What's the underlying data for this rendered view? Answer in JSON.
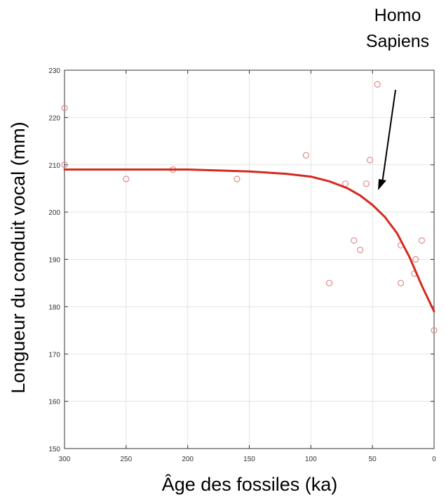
{
  "chart_data": {
    "type": "scatter",
    "xlabel": "Âge des fossiles (ka)",
    "ylabel": "Longueur du conduit vocal (mm)",
    "xlim": [
      300,
      0
    ],
    "ylim": [
      150,
      230
    ],
    "x_reversed": true,
    "grid": true,
    "xticks": [
      300,
      250,
      200,
      150,
      100,
      50,
      0
    ],
    "xtick_labels": [
      "300",
      "250",
      "200",
      "150",
      "100",
      "50",
      "0"
    ],
    "yticks": [
      150,
      160,
      170,
      180,
      190,
      200,
      210,
      220,
      230
    ],
    "ytick_labels": [
      "150",
      "160",
      "170",
      "180",
      "190",
      "200",
      "210",
      "220",
      "230"
    ],
    "series": [
      {
        "kind": "scatter",
        "marker": "circle-open",
        "color": "#e08a8a",
        "points": [
          {
            "x": 300,
            "y": 222
          },
          {
            "x": 300,
            "y": 210
          },
          {
            "x": 250,
            "y": 207
          },
          {
            "x": 212,
            "y": 209
          },
          {
            "x": 160,
            "y": 207
          },
          {
            "x": 104,
            "y": 212
          },
          {
            "x": 85,
            "y": 185
          },
          {
            "x": 72,
            "y": 206
          },
          {
            "x": 65,
            "y": 194
          },
          {
            "x": 60,
            "y": 192
          },
          {
            "x": 55,
            "y": 206
          },
          {
            "x": 52,
            "y": 211
          },
          {
            "x": 46,
            "y": 227
          },
          {
            "x": 27,
            "y": 193
          },
          {
            "x": 27,
            "y": 185
          },
          {
            "x": 16,
            "y": 187
          },
          {
            "x": 15,
            "y": 190
          },
          {
            "x": 10,
            "y": 194
          },
          {
            "x": 0,
            "y": 175
          }
        ]
      },
      {
        "kind": "line",
        "color": "#d42a1e",
        "points": [
          {
            "x": 300,
            "y": 209
          },
          {
            "x": 250,
            "y": 209
          },
          {
            "x": 200,
            "y": 209
          },
          {
            "x": 150,
            "y": 208.6
          },
          {
            "x": 120,
            "y": 208.1
          },
          {
            "x": 100,
            "y": 207.5
          },
          {
            "x": 85,
            "y": 206.5
          },
          {
            "x": 70,
            "y": 205
          },
          {
            "x": 60,
            "y": 203.5
          },
          {
            "x": 50,
            "y": 201.5
          },
          {
            "x": 40,
            "y": 199
          },
          {
            "x": 30,
            "y": 195.5
          },
          {
            "x": 20,
            "y": 190.5
          },
          {
            "x": 10,
            "y": 184.5
          },
          {
            "x": 0,
            "y": 179
          }
        ]
      }
    ],
    "annotations": [
      {
        "text_lines": [
          "Homo",
          "Sapiens"
        ],
        "arrow_to": {
          "x": 43,
          "y": 205
        }
      }
    ]
  },
  "colors": {
    "frame": "#333333",
    "grid": "#e3e3e3",
    "marker": "#e08a8a",
    "fit_line": "#d42a1e",
    "arrow": "#000000"
  }
}
